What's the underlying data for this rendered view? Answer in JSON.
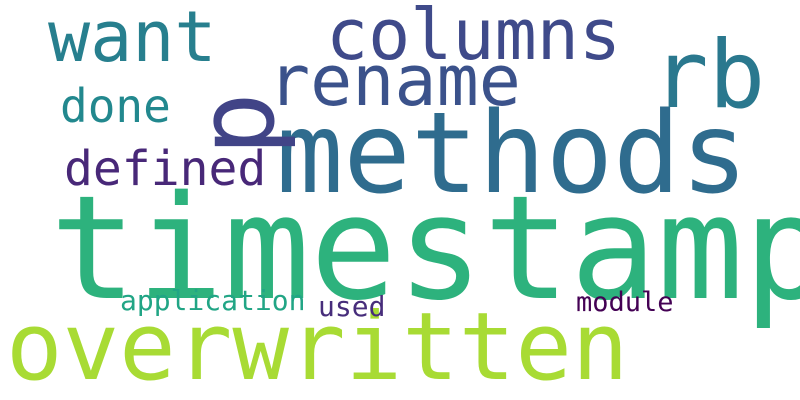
{
  "words": {
    "timestamp": {
      "text": "timestamp",
      "color": "#2db27d"
    },
    "overwritten": {
      "text": "overwritten",
      "color": "#a8db34"
    },
    "methods": {
      "text": "methods",
      "color": "#2f6c8e"
    },
    "rb": {
      "text": "rb",
      "color": "#2a788e"
    },
    "columns": {
      "text": "columns",
      "color": "#3f4a8a"
    },
    "rename": {
      "text": "rename",
      "color": "#3b528b"
    },
    "want": {
      "text": "want",
      "color": "#277f8e"
    },
    "p": {
      "text": "p",
      "color": "#414487"
    },
    "done": {
      "text": "done",
      "color": "#22888e"
    },
    "defined": {
      "text": "defined",
      "color": "#482878"
    },
    "application": {
      "text": "application",
      "color": "#21a585"
    },
    "used": {
      "text": "used",
      "color": "#472d7b"
    },
    "module": {
      "text": "module",
      "color": "#440154"
    }
  }
}
